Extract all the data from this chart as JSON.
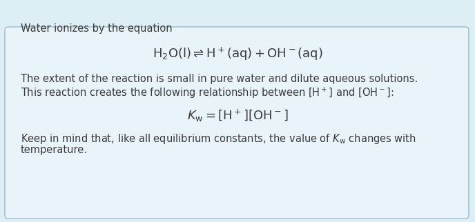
{
  "bg_color": "#ddeef5",
  "box_color": "#e8f4f9",
  "box_border_color": "#9bbccc",
  "text_color": "#3a3a3a",
  "line1": "Water ionizes by the equation",
  "line2_math": "$\\mathrm{H_2O(l) \\rightleftharpoons H^+(aq) + OH^-(aq)}$",
  "line3a": "The extent of the reaction is small in pure water and dilute aqueous solutions.",
  "line3b": "This reaction creates the following relationship between $\\mathrm{[H^+]}$ and $\\mathrm{[OH^-]}$:",
  "line4_math": "$K_\\mathrm{w} = \\mathrm{[H^+][OH^-]}$",
  "line5a": "Keep in mind that, like all equilibrium constants, the value of $K_\\mathrm{w}$ changes with",
  "line5b": "temperature.",
  "font_size_text": 10.5,
  "font_size_math": 13,
  "figsize": [
    6.88,
    3.22
  ],
  "dpi": 100
}
